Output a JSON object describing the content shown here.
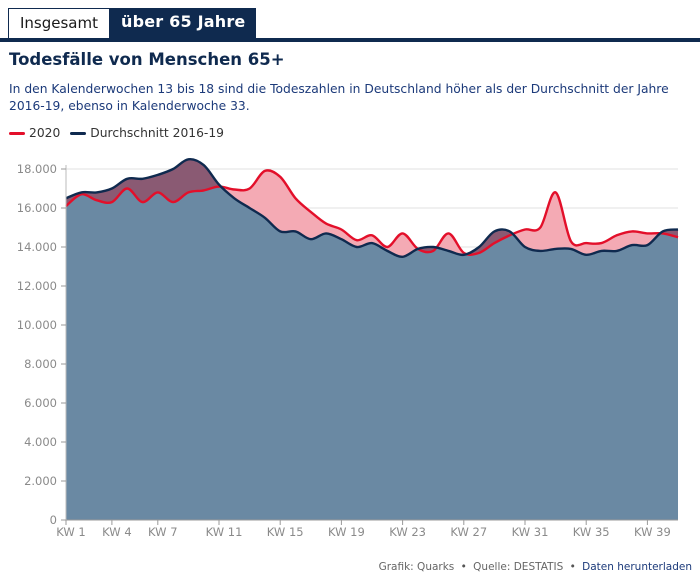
{
  "tabs": [
    {
      "label": "Insgesamt",
      "active": false
    },
    {
      "label": "über 65 Jahre",
      "active": true
    }
  ],
  "heading": "Todesfälle von Menschen 65+",
  "description": "In den Kalenderwochen 13 bis 18 sind die Todeszahlen in Deutschland höher als der Durchschnitt der Jahre 2016-19, ebenso in Kalenderwoche 33.",
  "footer": {
    "graphic": "Grafik: Quarks",
    "source": "Quelle: DESTATIS",
    "download": "Daten herunterladen"
  },
  "colors": {
    "series_2020": "#e30f2a",
    "series_avg": "#0f2a4f",
    "area_fill": "#6a89a3",
    "excess_fill": "#f4aab4",
    "tab_bg": "#0f2a4f"
  },
  "chart_data": {
    "type": "area",
    "title": "Todesfälle von Menschen 65+",
    "xlabel": "",
    "ylabel": "",
    "x": [
      1,
      2,
      3,
      4,
      5,
      6,
      7,
      8,
      9,
      10,
      11,
      12,
      13,
      14,
      15,
      16,
      17,
      18,
      19,
      20,
      21,
      22,
      23,
      24,
      25,
      26,
      27,
      28,
      29,
      30,
      31,
      32,
      33,
      34,
      35,
      36,
      37,
      38,
      39,
      40,
      41
    ],
    "xticks": [
      1,
      4,
      7,
      11,
      15,
      19,
      23,
      27,
      31,
      35,
      39
    ],
    "xtick_labels": [
      "KW 1",
      "KW 4",
      "KW 7",
      "KW 11",
      "KW 15",
      "KW 19",
      "KW 23",
      "KW 27",
      "KW 31",
      "KW 35",
      "KW 39"
    ],
    "yticks": [
      0,
      2000,
      4000,
      6000,
      8000,
      10000,
      12000,
      14000,
      16000,
      18000
    ],
    "ytick_labels": [
      "0",
      "2.000",
      "4.000",
      "6.000",
      "8.000",
      "10.000",
      "12.000",
      "14.000",
      "16.000",
      "18.000"
    ],
    "ylim": [
      0,
      18000
    ],
    "xlim": [
      1,
      41
    ],
    "legend": [
      "2020",
      "Durchschnitt 2016-19"
    ],
    "series": [
      {
        "name": "2020",
        "values": [
          16100,
          16700,
          16400,
          16300,
          17000,
          16300,
          16800,
          16300,
          16800,
          16900,
          17100,
          16950,
          17000,
          17900,
          17600,
          16500,
          15800,
          15200,
          14900,
          14350,
          14600,
          14000,
          14700,
          13900,
          13800,
          14700,
          13700,
          13700,
          14200,
          14600,
          14900,
          15000,
          16800,
          14300,
          14200,
          14200,
          14600,
          14800,
          14700,
          14700,
          14500
        ]
      },
      {
        "name": "Durchschnitt 2016-19",
        "values": [
          16500,
          16800,
          16800,
          17000,
          17500,
          17500,
          17700,
          18000,
          18500,
          18200,
          17200,
          16500,
          16000,
          15500,
          14800,
          14800,
          14400,
          14700,
          14400,
          14000,
          14200,
          13800,
          13500,
          13900,
          14000,
          13800,
          13600,
          14000,
          14800,
          14800,
          14000,
          13800,
          13900,
          13900,
          13600,
          13800,
          13800,
          14100,
          14100,
          14800,
          14900
        ]
      }
    ]
  }
}
